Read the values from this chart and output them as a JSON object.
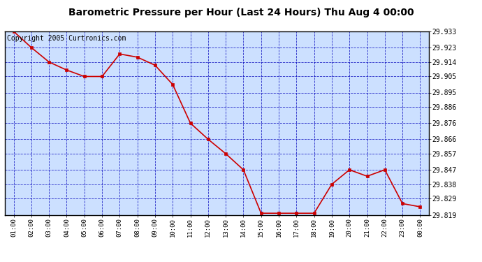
{
  "title": "Barometric Pressure per Hour (Last 24 Hours) Thu Aug 4 00:00",
  "copyright": "Copyright 2005 Curtronics.com",
  "hours": [
    "01:00",
    "02:00",
    "03:00",
    "04:00",
    "05:00",
    "06:00",
    "07:00",
    "08:00",
    "09:00",
    "10:00",
    "11:00",
    "12:00",
    "13:00",
    "14:00",
    "15:00",
    "16:00",
    "17:00",
    "18:00",
    "19:00",
    "20:00",
    "21:00",
    "22:00",
    "23:00",
    "00:00"
  ],
  "values": [
    29.933,
    29.923,
    29.914,
    29.909,
    29.905,
    29.905,
    29.919,
    29.917,
    29.912,
    29.9,
    29.876,
    29.866,
    29.857,
    29.847,
    29.82,
    29.82,
    29.82,
    29.82,
    29.838,
    29.847,
    29.843,
    29.847,
    29.826,
    29.824
  ],
  "yticks": [
    29.933,
    29.923,
    29.914,
    29.905,
    29.895,
    29.886,
    29.876,
    29.866,
    29.857,
    29.847,
    29.838,
    29.829,
    29.819
  ],
  "ymin": 29.819,
  "ymax": 29.933,
  "line_color": "#cc0000",
  "marker_color": "#cc0000",
  "bg_color": "#cce0ff",
  "grid_color": "#0000bb",
  "title_fontsize": 10,
  "copyright_fontsize": 7
}
